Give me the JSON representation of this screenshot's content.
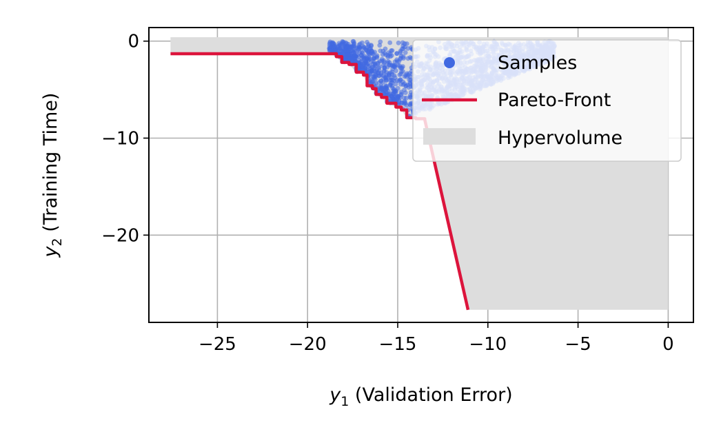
{
  "chart_data": {
    "type": "scatter",
    "x_label": {
      "var": "y",
      "sub": "1",
      "text": " (Validation Error)"
    },
    "y_label": {
      "var": "y",
      "sub": "2",
      "text": " (Training Time)"
    },
    "xlim": [
      -28.8,
      1.4
    ],
    "ylim": [
      -29.0,
      1.4
    ],
    "x_ticks": [
      -25,
      -20,
      -15,
      -10,
      -5,
      0
    ],
    "y_ticks": [
      0,
      -10,
      -20
    ],
    "grid": true,
    "legend_position": "top-right",
    "legend": [
      {
        "key": "samples",
        "label": "Samples",
        "color": "#4169e1"
      },
      {
        "key": "pareto",
        "label": "Pareto-Front",
        "color": "#dc143c"
      },
      {
        "key": "hypervolume",
        "label": "Hypervolume",
        "color": "#dddddd"
      }
    ],
    "reference_point": [
      0,
      -27.7
    ],
    "pareto_front": [
      [
        -27.6,
        -1.3
      ],
      [
        -18.8,
        -1.3
      ],
      [
        -18.4,
        -1.6
      ],
      [
        -18.1,
        -2.2
      ],
      [
        -17.7,
        -2.4
      ],
      [
        -17.3,
        -3.2
      ],
      [
        -16.9,
        -3.5
      ],
      [
        -16.7,
        -4.6
      ],
      [
        -16.4,
        -4.9
      ],
      [
        -16.2,
        -5.5
      ],
      [
        -15.9,
        -5.8
      ],
      [
        -15.6,
        -6.4
      ],
      [
        -15.1,
        -6.8
      ],
      [
        -14.8,
        -7.1
      ],
      [
        -14.5,
        -7.9
      ],
      [
        -14.0,
        -8.0
      ],
      [
        -13.5,
        -8.1
      ],
      [
        -11.1,
        -27.7
      ]
    ],
    "sample_region": {
      "top_y": 0,
      "x_max": -6.3,
      "count": 1800
    }
  }
}
